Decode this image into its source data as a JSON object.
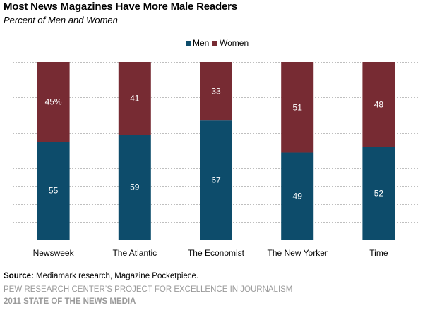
{
  "title": "Most News Magazines Have More Male Readers",
  "subtitle": "Percent of Men and Women",
  "colors": {
    "men": "#0d4c6b",
    "women": "#772b33",
    "grid": "#bfbfbf"
  },
  "legend": {
    "men": "Men",
    "women": "Women"
  },
  "source_label": "Source:",
  "source_text": "Mediamark research, Magazine Pocketpiece.",
  "footer_line1": "PEW RESEARCH CENTER’S PROJECT FOR EXCELLENCE IN JOURNALISM",
  "footer_line2": "2011 STATE OF THE NEWS MEDIA",
  "chart_data": {
    "type": "bar",
    "stacked": true,
    "categories": [
      "Newsweek",
      "The Atlantic",
      "The Economist",
      "The New Yorker",
      "Time"
    ],
    "series": [
      {
        "name": "Men",
        "values": [
          55,
          59,
          67,
          49,
          52
        ],
        "labels": [
          "55",
          "59",
          "67",
          "49",
          "52"
        ]
      },
      {
        "name": "Women",
        "values": [
          45,
          41,
          33,
          51,
          48
        ],
        "labels": [
          "45%",
          "41",
          "33",
          "51",
          "48"
        ]
      }
    ],
    "ylim": [
      0,
      100
    ],
    "grid": true,
    "legend_position": "top"
  }
}
